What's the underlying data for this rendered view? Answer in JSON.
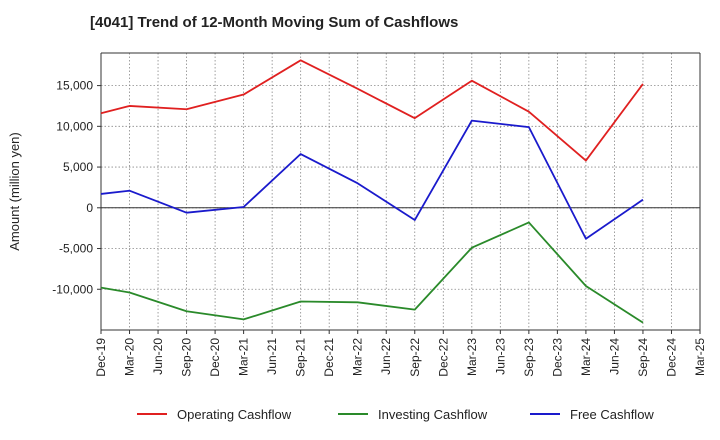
{
  "chart_data": {
    "type": "line",
    "title": "[4041]  Trend of 12-Month Moving Sum of Cashflows",
    "xlabel": "",
    "ylabel": "Amount (million yen)",
    "categories": [
      "Dec-19",
      "Mar-20",
      "Jun-20",
      "Sep-20",
      "Dec-20",
      "Mar-21",
      "Jun-21",
      "Sep-21",
      "Dec-21",
      "Mar-22",
      "Jun-22",
      "Sep-22",
      "Dec-22",
      "Mar-23",
      "Jun-23",
      "Sep-23",
      "Dec-23",
      "Mar-24",
      "Jun-24",
      "Sep-24",
      "Dec-24",
      "Mar-25"
    ],
    "yticks": [
      -10000,
      -5000,
      0,
      5000,
      10000,
      15000
    ],
    "ytick_labels": [
      "-10,000",
      "-5,000",
      "0",
      "5,000",
      "10,000",
      "15,000"
    ],
    "ylim": [
      -15000,
      19000
    ],
    "grid": true,
    "legend_position": "bottom",
    "series": [
      {
        "name": "Operating Cashflow",
        "color": "#e02020",
        "values": [
          11600,
          12500,
          null,
          12100,
          null,
          13900,
          null,
          18100,
          null,
          14600,
          null,
          11000,
          null,
          15600,
          null,
          11800,
          null,
          5800,
          null,
          15200,
          null,
          null
        ]
      },
      {
        "name": "Investing Cashflow",
        "color": "#2a8a2a",
        "values": [
          -9800,
          -10400,
          null,
          -12700,
          null,
          -13700,
          null,
          -11500,
          null,
          -11600,
          null,
          -12500,
          null,
          -4900,
          null,
          -1800,
          null,
          -9600,
          null,
          -14100,
          null,
          null
        ]
      },
      {
        "name": "Free Cashflow",
        "color": "#1a1acc",
        "values": [
          1700,
          2100,
          null,
          -600,
          null,
          100,
          null,
          6600,
          null,
          3000,
          null,
          -1500,
          null,
          10700,
          null,
          9900,
          null,
          -3800,
          null,
          1000,
          null,
          null
        ]
      }
    ]
  }
}
